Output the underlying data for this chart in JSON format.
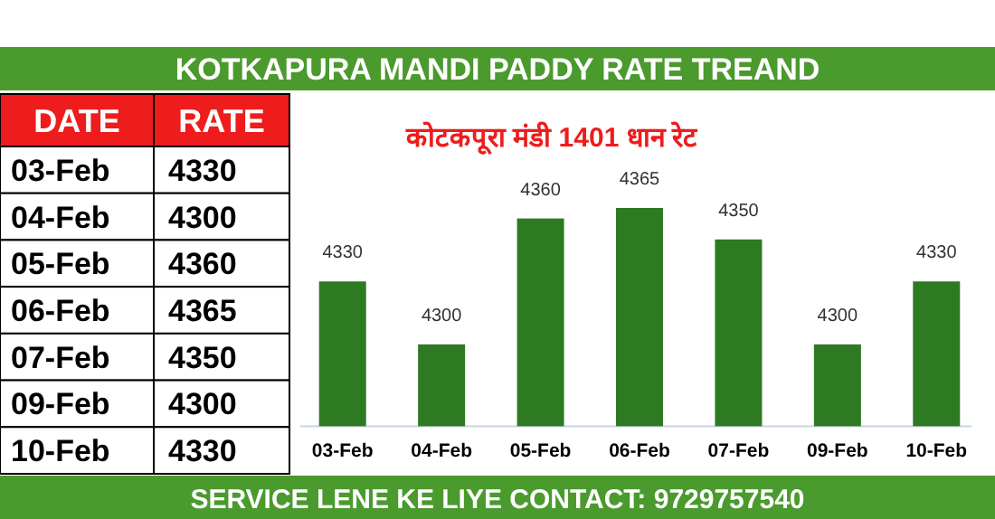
{
  "chart_data": [
    {
      "type": "other",
      "annotations": [
        "DATE",
        "RATE"
      ],
      "categories": [
        "03-Feb",
        "04-Feb",
        "05-Feb",
        "06-Feb",
        "07-Feb",
        "09-Feb",
        "10-Feb"
      ],
      "values": [
        4330,
        4300,
        4360,
        4365,
        4350,
        4300,
        4330
      ],
      "data_labels": true
    },
    {
      "type": "bar",
      "title": "KOTKAPURA MANDI PADDY RATE TREAND",
      "subtitle": "कोटकपूरा  मंडी 1401 धान रेट",
      "categories": [
        "03-Feb",
        "04-Feb",
        "05-Feb",
        "06-Feb",
        "07-Feb",
        "09-Feb",
        "10-Feb"
      ],
      "values": [
        4330,
        4300,
        4360,
        4365,
        4350,
        4300,
        4330
      ],
      "color": "#2e7a22",
      "ylim": [
        4261,
        4365
      ],
      "tick_labels": "x",
      "data_labels": true,
      "annotations": [
        "SERVICE LENE KE LIYE CONTACT: 9729757540"
      ]
    }
  ]
}
